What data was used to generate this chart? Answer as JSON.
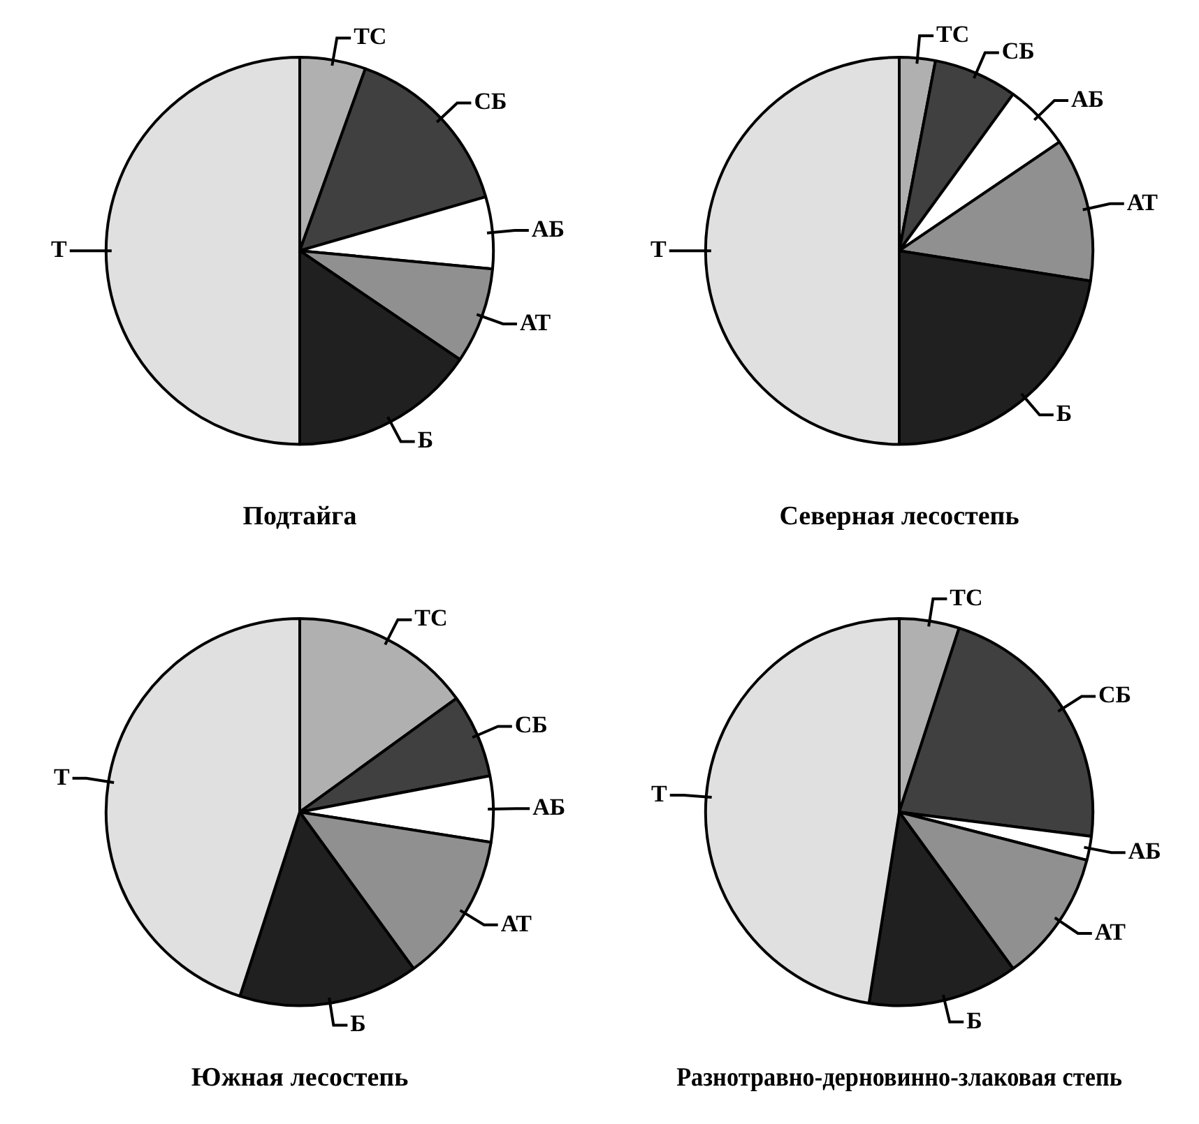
{
  "chart_data": [
    {
      "type": "pie",
      "title": "Подтайга",
      "categories": [
        "ТС",
        "СБ",
        "АБ",
        "АТ",
        "Б",
        "Т"
      ],
      "values": [
        5.5,
        15,
        6,
        8,
        15.5,
        50
      ],
      "colors": [
        "#b0b0b0",
        "#404040",
        "#ffffff",
        "#909090",
        "#202020",
        "#e0e0e0"
      ],
      "legend": false
    },
    {
      "type": "pie",
      "title": "Северная лесостепь",
      "categories": [
        "ТС",
        "СБ",
        "АБ",
        "АТ",
        "Б",
        "Т"
      ],
      "values": [
        3,
        7,
        5.5,
        12,
        22.5,
        50
      ],
      "colors": [
        "#b0b0b0",
        "#404040",
        "#ffffff",
        "#909090",
        "#202020",
        "#e0e0e0"
      ],
      "legend": false
    },
    {
      "type": "pie",
      "title": "Южная лесостепь",
      "categories": [
        "ТС",
        "СБ",
        "АБ",
        "АТ",
        "Б",
        "Т"
      ],
      "values": [
        15,
        7,
        5.5,
        12.5,
        15,
        45
      ],
      "colors": [
        "#b0b0b0",
        "#404040",
        "#ffffff",
        "#909090",
        "#202020",
        "#e0e0e0"
      ],
      "legend": false
    },
    {
      "type": "pie",
      "title": "Разнотравно-дерновинно-злаковая степь",
      "categories": [
        "ТС",
        "СБ",
        "АБ",
        "АТ",
        "Б",
        "Т"
      ],
      "values": [
        5,
        22,
        2,
        11,
        12.5,
        47.5
      ],
      "colors": [
        "#b0b0b0",
        "#404040",
        "#ffffff",
        "#909090",
        "#202020",
        "#e0e0e0"
      ],
      "legend": false
    }
  ]
}
